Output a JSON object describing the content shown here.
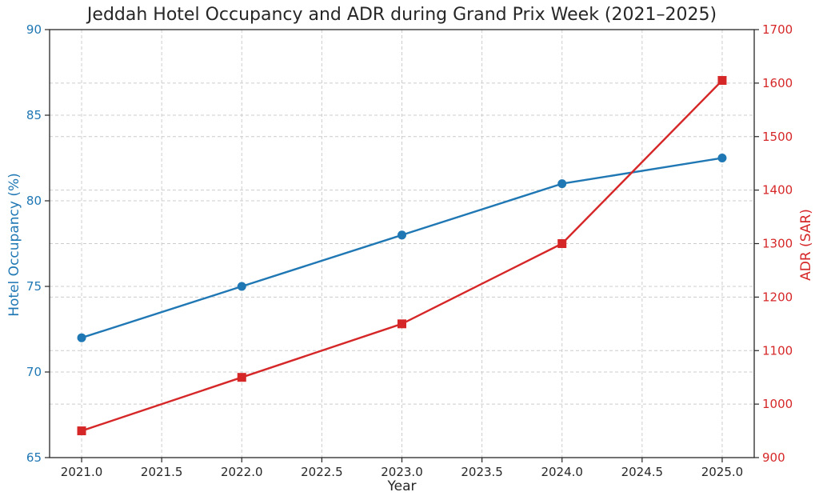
{
  "chart_data": {
    "type": "line",
    "title": "Jeddah Hotel Occupancy and ADR during Grand Prix Week (2021–2025)",
    "xlabel": "Year",
    "x": [
      2021,
      2022,
      2023,
      2024,
      2025
    ],
    "x_axis": {
      "min": 2020.8,
      "max": 2025.2,
      "ticks": [
        2021.0,
        2021.5,
        2022.0,
        2022.5,
        2023.0,
        2023.5,
        2024.0,
        2024.5,
        2025.0
      ],
      "tick_decimals": 1,
      "color": "#262626"
    },
    "left_axis": {
      "label": "Hotel Occupancy (%)",
      "min": 65,
      "max": 90,
      "ticks": [
        65,
        70,
        75,
        80,
        85,
        90
      ],
      "color": "#1f77b4"
    },
    "right_axis": {
      "label": "ADR (SAR)",
      "min": 900,
      "max": 1700,
      "ticks": [
        900,
        1000,
        1100,
        1200,
        1300,
        1400,
        1500,
        1600,
        1700
      ],
      "color": "#d62728"
    },
    "series": [
      {
        "key": "occupancy",
        "name": "Hotel Occupancy (%)",
        "axis": "left",
        "marker": "circle",
        "color": "#1f77b4",
        "values": [
          72,
          75,
          78,
          81,
          82.5
        ]
      },
      {
        "key": "adr",
        "name": "ADR (SAR)",
        "axis": "right",
        "marker": "square",
        "color": "#d62728",
        "values": [
          950,
          1050,
          1150,
          1300,
          1605
        ]
      }
    ],
    "grid": {
      "show": true,
      "color": "#cccccc",
      "style": "dashed"
    },
    "legend": {
      "show": false
    },
    "spine_color": "#262626",
    "background": "#ffffff"
  }
}
